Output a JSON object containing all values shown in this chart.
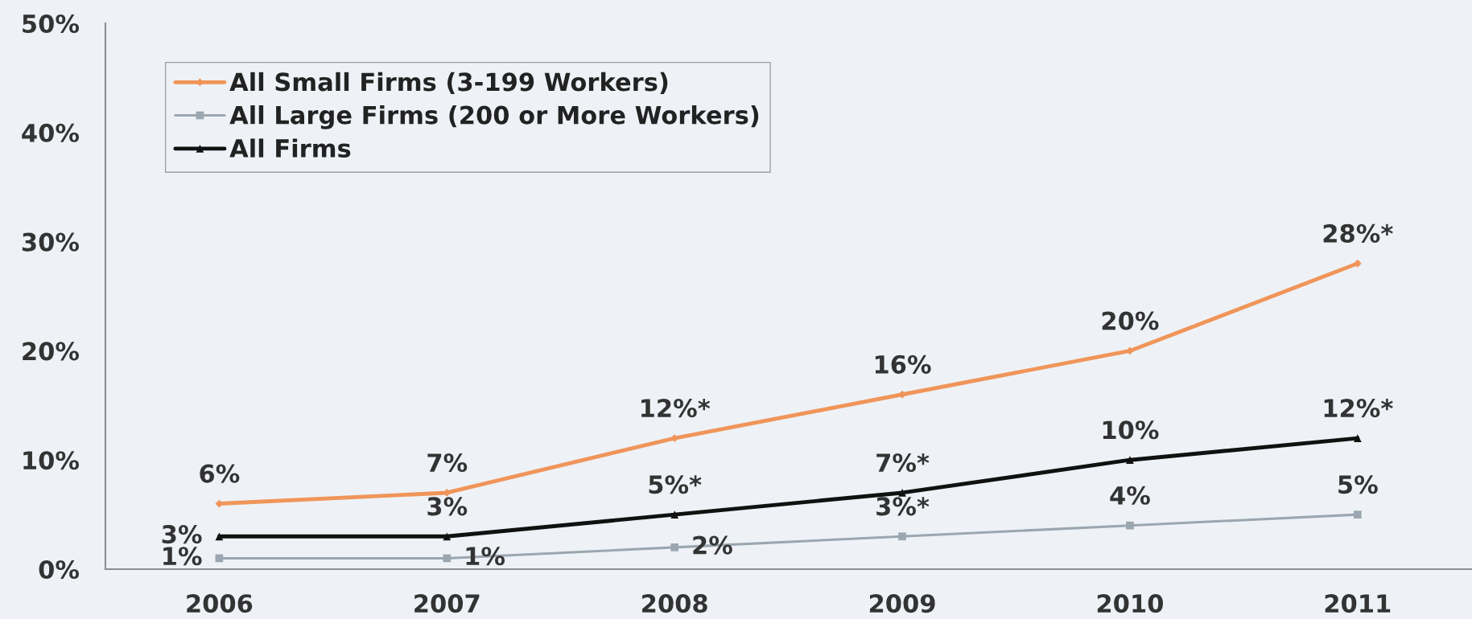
{
  "chart_data": {
    "type": "line",
    "categories": [
      "2006",
      "2007",
      "2008",
      "2009",
      "2010",
      "2011"
    ],
    "ylim": [
      0,
      50
    ],
    "yticks": [
      {
        "value": 0,
        "label": "0%"
      },
      {
        "value": 10,
        "label": "10%"
      },
      {
        "value": 20,
        "label": "20%"
      },
      {
        "value": 30,
        "label": "30%"
      },
      {
        "value": 40,
        "label": "40%"
      },
      {
        "value": 50,
        "label": "50%"
      }
    ],
    "legend": "top left",
    "line_style": "solid",
    "series": [
      {
        "name": "All Small Firms (3-199 Workers)",
        "color": "#f0955a",
        "marker": "diamond",
        "values": [
          6,
          7,
          12,
          16,
          20,
          28
        ],
        "value_labels": [
          "6%",
          "7%",
          "12%*",
          "16%",
          "20%",
          "28%*"
        ]
      },
      {
        "name": "All Large Firms (200 or More Workers)",
        "color": "#9aa6b0",
        "marker": "square",
        "values": [
          1,
          1,
          2,
          3,
          4,
          5
        ],
        "value_labels": [
          "1%",
          "1%",
          "2%",
          "3%*",
          "4%",
          "5%"
        ]
      },
      {
        "name": "All Firms",
        "color": "#111111",
        "marker": "triangle",
        "values": [
          3,
          3,
          5,
          7,
          10,
          12
        ],
        "value_labels": [
          "3%",
          "3%",
          "5%*",
          "7%*",
          "10%",
          "12%*"
        ]
      }
    ]
  }
}
